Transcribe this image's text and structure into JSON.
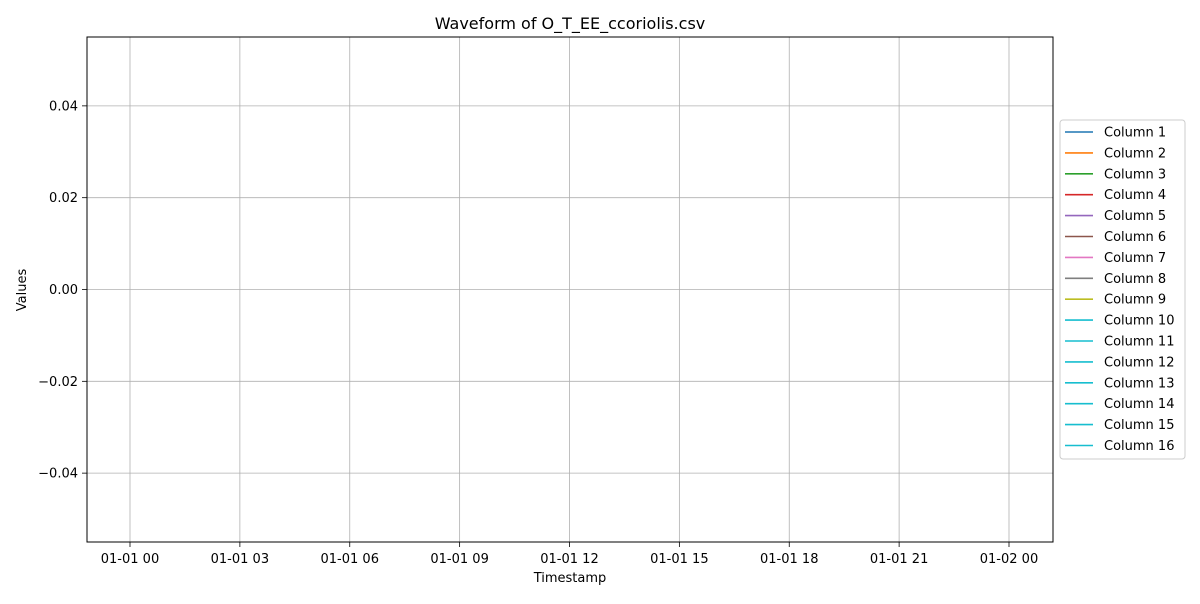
{
  "chart_data": {
    "type": "line",
    "title": "Waveform of O_T_EE_ccoriolis.csv",
    "xlabel": "Timestamp",
    "ylabel": "Values",
    "x_tick_labels": [
      "01-01 00",
      "01-01 03",
      "01-01 06",
      "01-01 09",
      "01-01 12",
      "01-01 15",
      "01-01 18",
      "01-01 21",
      "01-02 00"
    ],
    "y_ticks": [
      0.04,
      0.02,
      0.0,
      -0.02,
      -0.04
    ],
    "y_tick_labels": [
      "0.04",
      "0.02",
      "0.00",
      "−0.02",
      "−0.04"
    ],
    "ylim": [
      -0.055,
      0.055
    ],
    "grid": true,
    "legend_position": "right",
    "series": [
      {
        "name": "Column 1",
        "color": "#1f77b4",
        "values": []
      },
      {
        "name": "Column 2",
        "color": "#ff7f0e",
        "values": []
      },
      {
        "name": "Column 3",
        "color": "#2ca02c",
        "values": []
      },
      {
        "name": "Column 4",
        "color": "#d62728",
        "values": []
      },
      {
        "name": "Column 5",
        "color": "#9467bd",
        "values": []
      },
      {
        "name": "Column 6",
        "color": "#8c564b",
        "values": []
      },
      {
        "name": "Column 7",
        "color": "#e377c2",
        "values": []
      },
      {
        "name": "Column 8",
        "color": "#7f7f7f",
        "values": []
      },
      {
        "name": "Column 9",
        "color": "#bcbd22",
        "values": []
      },
      {
        "name": "Column 10",
        "color": "#17becf",
        "values": []
      },
      {
        "name": "Column 11",
        "color": "#17becf",
        "values": []
      },
      {
        "name": "Column 12",
        "color": "#17becf",
        "values": []
      },
      {
        "name": "Column 13",
        "color": "#17becf",
        "values": []
      },
      {
        "name": "Column 14",
        "color": "#17becf",
        "values": []
      },
      {
        "name": "Column 15",
        "color": "#17becf",
        "values": []
      },
      {
        "name": "Column 16",
        "color": "#17becf",
        "values": []
      }
    ]
  }
}
